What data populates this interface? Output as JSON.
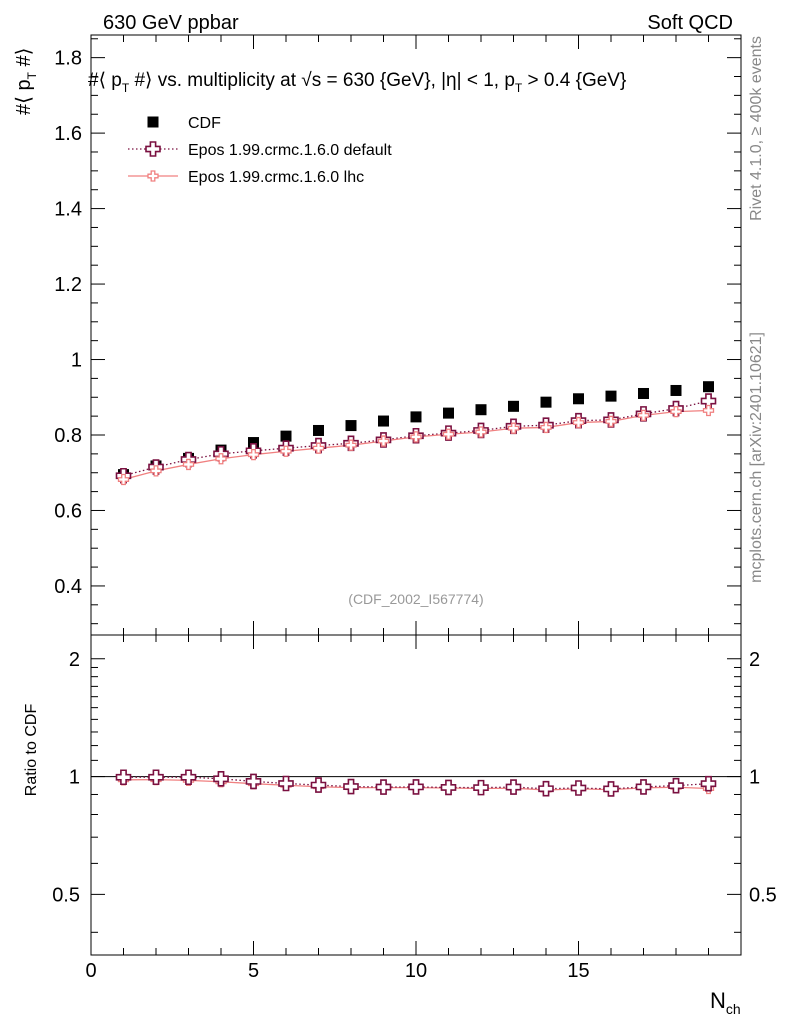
{
  "header": {
    "left": "630 GeV ppbar",
    "right": "Soft QCD"
  },
  "side_labels": {
    "rivet": "Rivet 4.1.0, ≥ 400k events",
    "mcplots": "mcplots.cern.ch [arXiv:2401.10621]"
  },
  "watermark": "(CDF_2002_I567774)",
  "colors": {
    "cdf": "#000000",
    "default": "#7a1040",
    "lhc": "#f08080"
  },
  "chart_data": [
    {
      "type": "scatter",
      "panel": "main",
      "title": "#⟨ p_T #⟩ vs. multiplicity at √s = 630 {GeV}, |η| < 1, p_T > 0.4 {GeV}",
      "ylabel": "#⟨ p_T #⟩",
      "xlim": [
        0,
        20
      ],
      "ylim": [
        0.27,
        1.86
      ],
      "xticks": [
        0,
        5,
        10,
        15
      ],
      "yticks": [
        0.4,
        0.6,
        0.8,
        1.0,
        1.2,
        1.4,
        1.6,
        1.8
      ],
      "ytick_labels": [
        "0.4",
        "0.6",
        "0.8",
        "1",
        "1.2",
        "1.4",
        "1.6",
        "1.8"
      ],
      "legend_position": "top-left",
      "x": [
        1,
        2,
        3,
        4,
        5,
        6,
        7,
        8,
        9,
        10,
        11,
        12,
        13,
        14,
        15,
        16,
        17,
        18,
        19
      ],
      "series": [
        {
          "name": "CDF",
          "style": "square",
          "values": [
            0.695,
            0.718,
            0.738,
            0.76,
            0.78,
            0.797,
            0.812,
            0.825,
            0.837,
            0.848,
            0.858,
            0.867,
            0.876,
            0.887,
            0.896,
            0.903,
            0.91,
            0.918,
            0.928
          ]
        },
        {
          "name": "Epos 1.99.crmc.1.6.0 default",
          "style": "open-cross-dotted",
          "values": [
            0.692,
            0.715,
            0.735,
            0.75,
            0.758,
            0.765,
            0.772,
            0.778,
            0.787,
            0.798,
            0.805,
            0.812,
            0.823,
            0.826,
            0.838,
            0.84,
            0.856,
            0.87,
            0.89
          ]
        },
        {
          "name": "Epos 1.99.crmc.1.6.0 lhc",
          "style": "small-cross-solid",
          "values": [
            0.682,
            0.705,
            0.722,
            0.737,
            0.748,
            0.757,
            0.765,
            0.773,
            0.784,
            0.795,
            0.802,
            0.808,
            0.818,
            0.82,
            0.833,
            0.836,
            0.852,
            0.862,
            0.865
          ]
        }
      ]
    },
    {
      "type": "line",
      "panel": "ratio",
      "ylabel": "Ratio to CDF",
      "xlabel": "N_ch",
      "xlim": [
        0,
        20
      ],
      "ylim": [
        0.35,
        2.3
      ],
      "scale": "log",
      "xticks": [
        0,
        5,
        10,
        15
      ],
      "xtick_labels": [
        "0",
        "5",
        "10",
        "15"
      ],
      "yticks": [
        0.5,
        1,
        2
      ],
      "ytick_labels": [
        "0.5",
        "1",
        "2"
      ],
      "x": [
        1,
        2,
        3,
        4,
        5,
        6,
        7,
        8,
        9,
        10,
        11,
        12,
        13,
        14,
        15,
        16,
        17,
        18,
        19
      ],
      "series": [
        {
          "name": "Epos 1.99.crmc.1.6.0 default",
          "values": [
            0.996,
            0.996,
            0.996,
            0.987,
            0.972,
            0.96,
            0.951,
            0.943,
            0.94,
            0.941,
            0.938,
            0.937,
            0.94,
            0.931,
            0.935,
            0.93,
            0.941,
            0.948,
            0.959
          ]
        },
        {
          "name": "Epos 1.99.crmc.1.6.0 lhc",
          "values": [
            0.981,
            0.982,
            0.978,
            0.97,
            0.959,
            0.95,
            0.942,
            0.937,
            0.937,
            0.937,
            0.935,
            0.932,
            0.934,
            0.924,
            0.93,
            0.926,
            0.936,
            0.939,
            0.932
          ]
        }
      ]
    }
  ]
}
